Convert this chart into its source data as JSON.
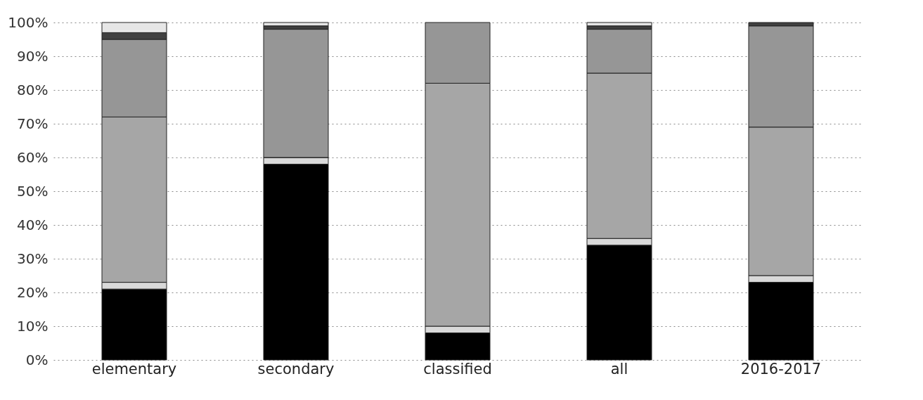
{
  "chart_data": {
    "type": "bar",
    "stacked": true,
    "categories": [
      "elementary",
      "secondary",
      "classified",
      "all",
      "2016-2017"
    ],
    "series": [
      {
        "color": "#000000",
        "values": [
          21,
          58,
          8,
          34,
          23
        ]
      },
      {
        "color": "#d9d9d9",
        "values": [
          2,
          2,
          2,
          2,
          2
        ]
      },
      {
        "color": "#a6a6a6",
        "values": [
          49,
          0,
          72,
          49,
          44
        ]
      },
      {
        "color": "#969696",
        "values": [
          23,
          38,
          18,
          13,
          30
        ]
      },
      {
        "color": "#404040",
        "values": [
          2,
          1,
          null,
          1,
          1
        ]
      },
      {
        "color": "#e6e6e6",
        "values": [
          3,
          1,
          null,
          1,
          null
        ]
      }
    ],
    "ylim": [
      0,
      100
    ],
    "yticks": [
      {
        "value": 0,
        "label": "0%"
      },
      {
        "value": 10,
        "label": "10%"
      },
      {
        "value": 20,
        "label": "20%"
      },
      {
        "value": 30,
        "label": "30%"
      },
      {
        "value": 40,
        "label": "40%"
      },
      {
        "value": 50,
        "label": "50%"
      },
      {
        "value": 60,
        "label": "60%"
      },
      {
        "value": 70,
        "label": "70%"
      },
      {
        "value": 80,
        "label": "80%"
      },
      {
        "value": 90,
        "label": "90%"
      },
      {
        "value": 100,
        "label": "100%"
      }
    ],
    "grid": "y",
    "legend": false
  }
}
